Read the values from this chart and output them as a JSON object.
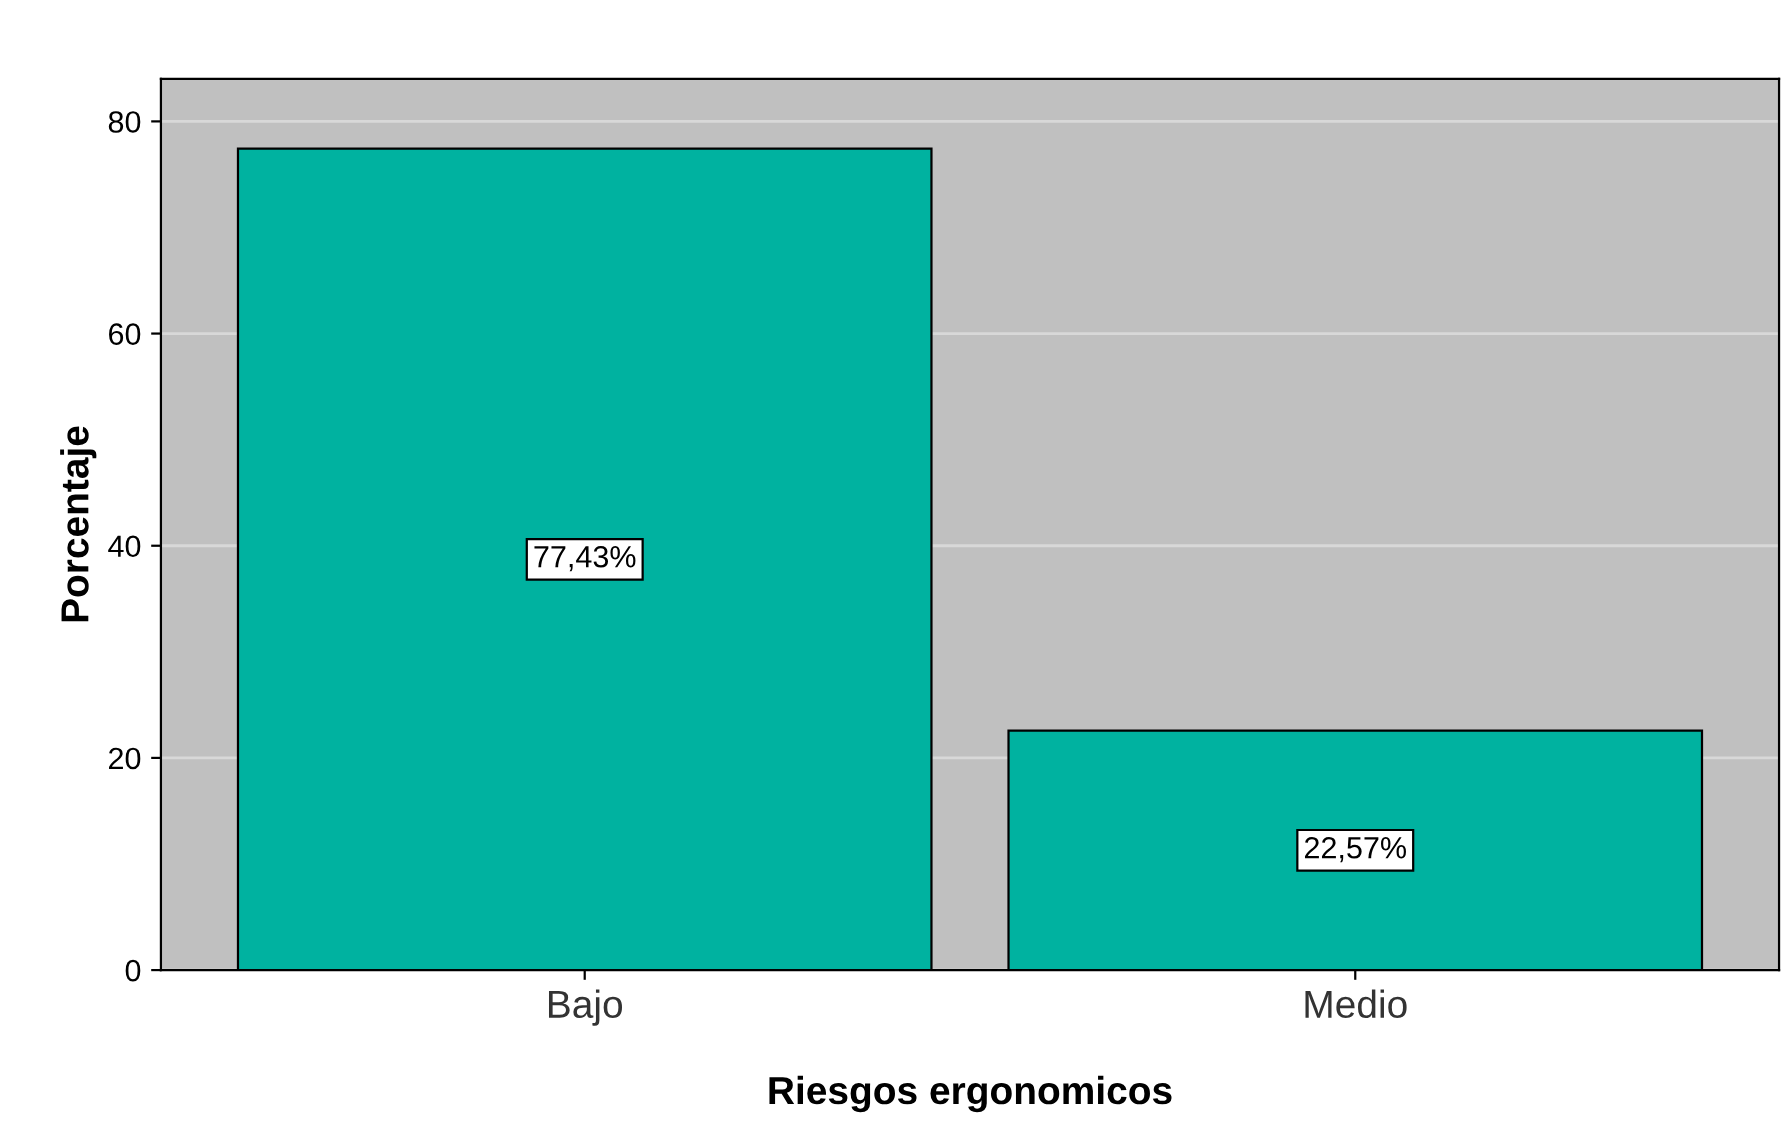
{
  "chart_data": {
    "type": "bar",
    "xlabel": "Riesgos ergonomicos",
    "ylabel": "Porcentaje",
    "categories": [
      "Bajo",
      "Medio"
    ],
    "values": [
      77.43,
      22.57
    ],
    "value_labels": [
      "77,43%",
      "22,57%"
    ],
    "color": "#00b2a0",
    "ylim": [
      0,
      84
    ],
    "yticks": [
      0,
      20,
      40,
      60,
      80
    ],
    "grid": "y"
  }
}
